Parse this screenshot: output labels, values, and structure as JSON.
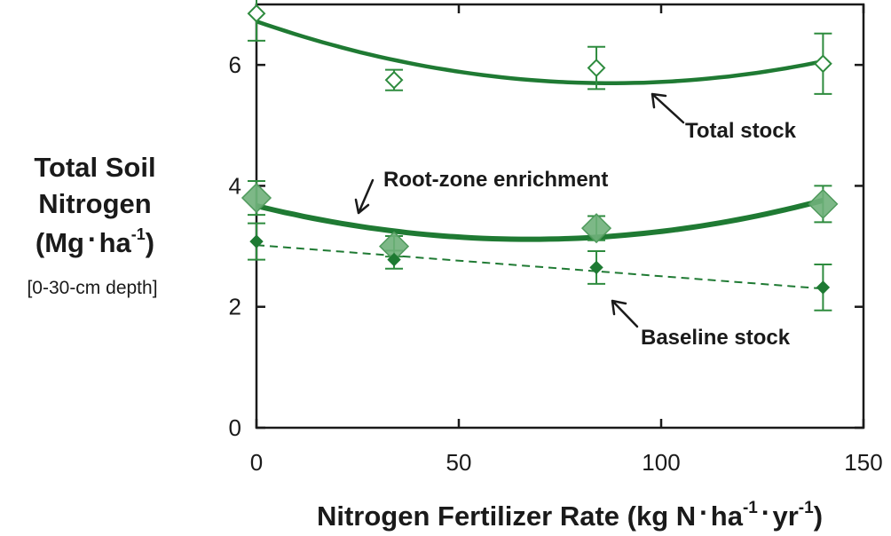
{
  "chart_data": {
    "type": "scatter",
    "xlabel_main": "Nitrogen Fertilizer Rate (kg N",
    "xlabel_ha": "ha",
    "xlabel_yr": "yr",
    "xlabel_exp": "-1",
    "ylabel_line1": "Total Soil",
    "ylabel_line2": "Nitrogen",
    "ylabel_unit_open": "(Mg",
    "ylabel_unit_ha": "ha",
    "ylabel_unit_exp": "-1",
    "ylabel_unit_close": ")",
    "ylabel_sub": "[0-30-cm depth]",
    "xlim": [
      0,
      150
    ],
    "ylim": [
      0,
      7
    ],
    "xticks": [
      0,
      50,
      100,
      150
    ],
    "yticks": [
      0,
      2,
      4,
      6
    ],
    "series": [
      {
        "name": "Total stock",
        "marker": "open-diamond",
        "color": "#2e8b3e",
        "x": [
          0,
          34,
          84,
          140
        ],
        "y": [
          6.85,
          5.75,
          5.95,
          6.02
        ],
        "err": [
          0.45,
          0.17,
          0.35,
          0.5
        ],
        "fit": "quadratic",
        "fit_points": [
          [
            0,
            6.72
          ],
          [
            34,
            6.0
          ],
          [
            84,
            5.7
          ],
          [
            140,
            6.06
          ]
        ]
      },
      {
        "name": "Root-zone enrichment",
        "marker": "large-filled-diamond",
        "color": "#6fb07a",
        "x": [
          0,
          34,
          84,
          140
        ],
        "y": [
          3.8,
          3.0,
          3.3,
          3.7
        ],
        "err": [
          0.28,
          0.17,
          0.2,
          0.3
        ],
        "fit": "quadratic",
        "fit_points": [
          [
            0,
            3.67
          ],
          [
            34,
            3.27
          ],
          [
            84,
            3.15
          ],
          [
            140,
            3.76
          ]
        ]
      },
      {
        "name": "Baseline stock",
        "marker": "small-filled-diamond",
        "color": "#1e7a33",
        "x": [
          0,
          34,
          84,
          140
        ],
        "y": [
          3.08,
          2.78,
          2.65,
          2.32
        ],
        "err": [
          0.3,
          0.15,
          0.27,
          0.38
        ],
        "fit": "linear-dashed",
        "fit_points": [
          [
            0,
            3.02
          ],
          [
            140,
            2.3
          ]
        ]
      }
    ],
    "annotations": [
      {
        "text": "Total stock",
        "x": 104,
        "y": 4.95
      },
      {
        "text": "Root-zone enrichment",
        "x": 31,
        "y": 3.95
      },
      {
        "text": "Baseline stock",
        "x": 95,
        "y": 1.55
      }
    ]
  }
}
